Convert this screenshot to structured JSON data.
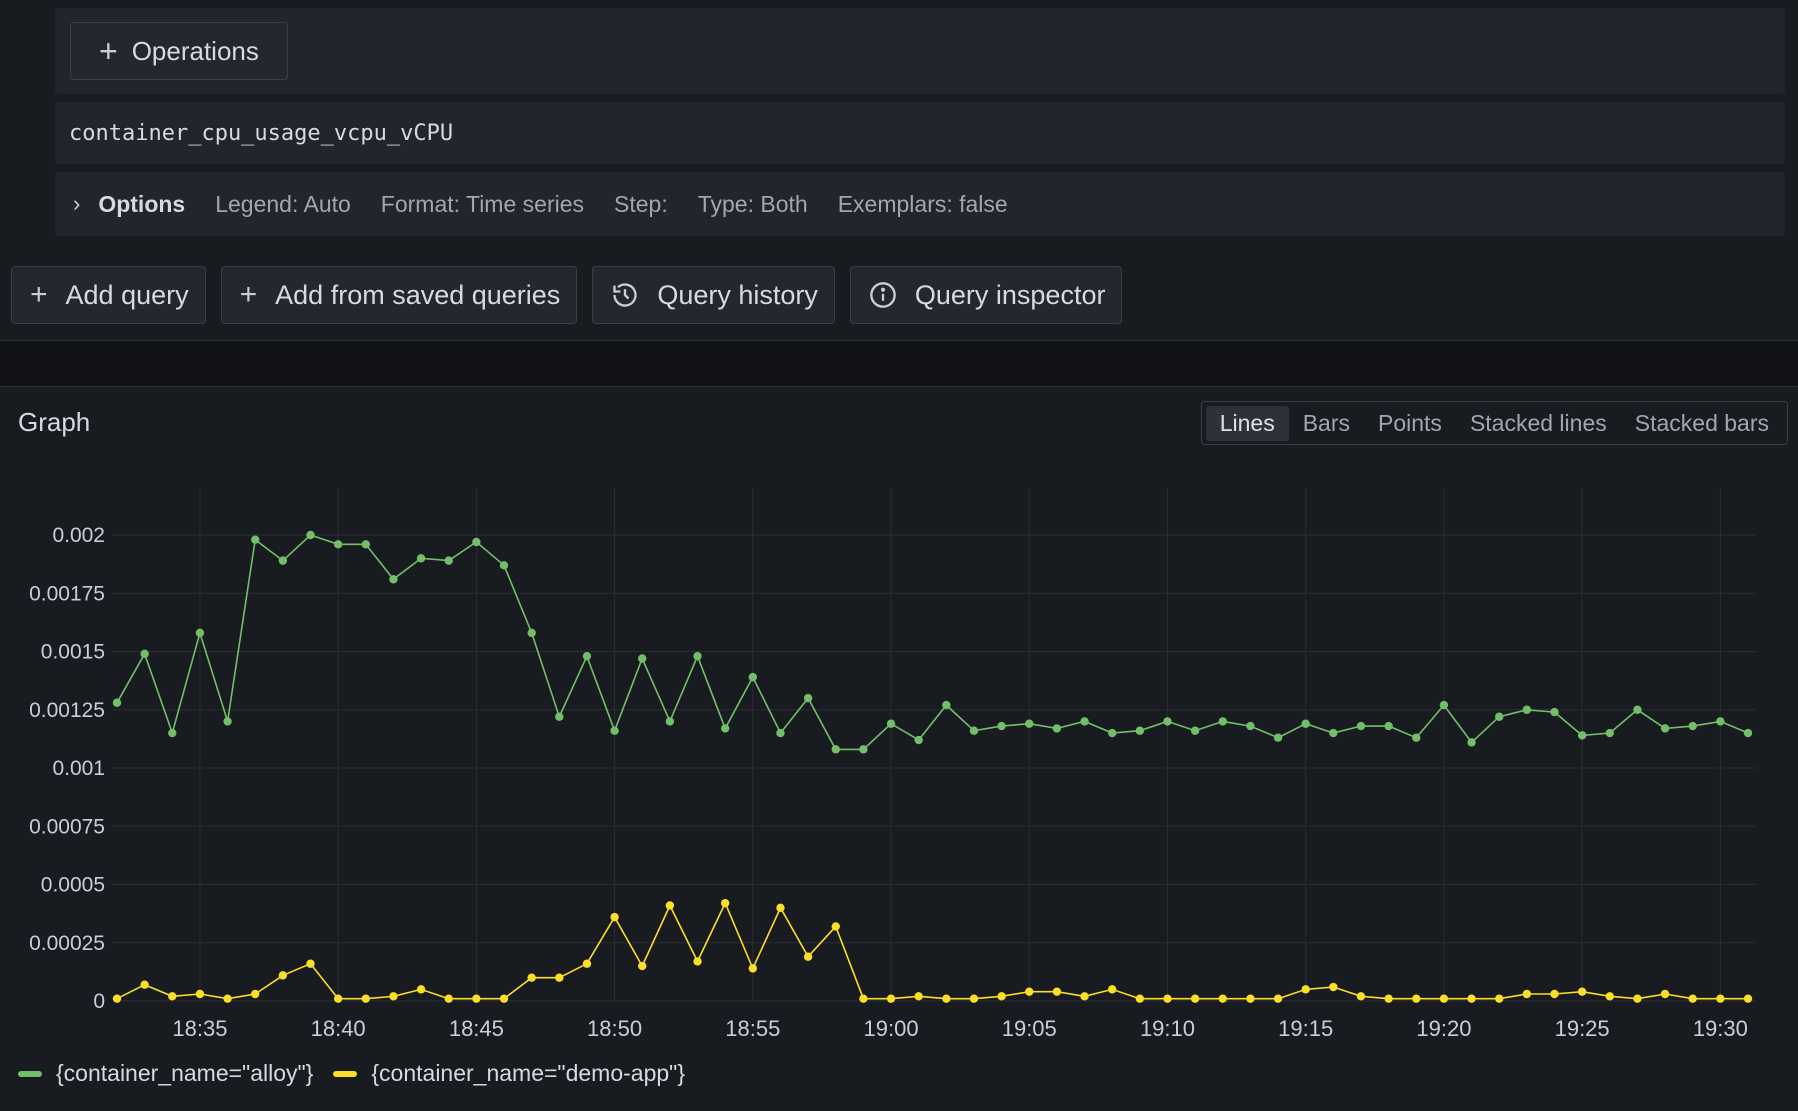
{
  "query_editor": {
    "operations_label": "Operations",
    "metric": "container_cpu_usage_vcpu_vCPU",
    "options": {
      "title": "Options",
      "legend": "Legend: Auto",
      "format": "Format: Time series",
      "step": "Step:",
      "type": "Type: Both",
      "exemplars": "Exemplars: false"
    }
  },
  "toolbar": {
    "add_query": "Add query",
    "add_saved": "Add from saved queries",
    "history": "Query history",
    "inspector": "Query inspector"
  },
  "graph": {
    "title": "Graph",
    "modes": [
      "Lines",
      "Bars",
      "Points",
      "Stacked lines",
      "Stacked bars"
    ],
    "active_mode": "Lines"
  },
  "chart_data": {
    "type": "line",
    "x_ticks": [
      "18:35",
      "18:40",
      "18:45",
      "18:50",
      "18:55",
      "19:00",
      "19:05",
      "19:10",
      "19:15",
      "19:20",
      "19:25",
      "19:30"
    ],
    "y_ticks": [
      "0",
      "0.00025",
      "0.0005",
      "0.00075",
      "0.001",
      "0.00125",
      "0.0015",
      "0.00175",
      "0.002"
    ],
    "ylim": [
      0,
      0.002
    ],
    "x_start": "18:32",
    "x_step_minutes": 1,
    "grid": true,
    "legend_position": "bottom-left",
    "series": [
      {
        "name": "{container_name=\"alloy\"}",
        "color": "#73bf69",
        "values": [
          0.00128,
          0.00149,
          0.00115,
          0.00158,
          0.0012,
          0.00198,
          0.00189,
          0.002,
          0.00196,
          0.00196,
          0.00181,
          0.0019,
          0.00189,
          0.00197,
          0.00187,
          0.00158,
          0.00122,
          0.00148,
          0.00116,
          0.00147,
          0.0012,
          0.00148,
          0.00117,
          0.00139,
          0.00115,
          0.0013,
          0.00108,
          0.00108,
          0.00119,
          0.00112,
          0.00127,
          0.00116,
          0.00118,
          0.00119,
          0.00117,
          0.0012,
          0.00115,
          0.00116,
          0.0012,
          0.00116,
          0.0012,
          0.00118,
          0.00113,
          0.00119,
          0.00115,
          0.00118,
          0.00118,
          0.00113,
          0.00127,
          0.00111,
          0.00122,
          0.00125,
          0.00124,
          0.00114,
          0.00115,
          0.00125,
          0.00117,
          0.00118,
          0.0012,
          0.00115
        ]
      },
      {
        "name": "{container_name=\"demo-app\"}",
        "color": "#fade2a",
        "values": [
          1e-05,
          7e-05,
          2e-05,
          3e-05,
          1e-05,
          3e-05,
          0.00011,
          0.00016,
          1e-05,
          1e-05,
          2e-05,
          5e-05,
          1e-05,
          1e-05,
          1e-05,
          0.0001,
          0.0001,
          0.00016,
          0.00036,
          0.00015,
          0.00041,
          0.00017,
          0.00042,
          0.00014,
          0.0004,
          0.00019,
          0.00032,
          1e-05,
          1e-05,
          2e-05,
          1e-05,
          1e-05,
          2e-05,
          4e-05,
          4e-05,
          2e-05,
          5e-05,
          1e-05,
          1e-05,
          1e-05,
          1e-05,
          1e-05,
          1e-05,
          5e-05,
          6e-05,
          2e-05,
          1e-05,
          1e-05,
          1e-05,
          1e-05,
          1e-05,
          3e-05,
          3e-05,
          4e-05,
          2e-05,
          1e-05,
          3e-05,
          1e-05,
          1e-05,
          1e-05
        ]
      }
    ]
  }
}
